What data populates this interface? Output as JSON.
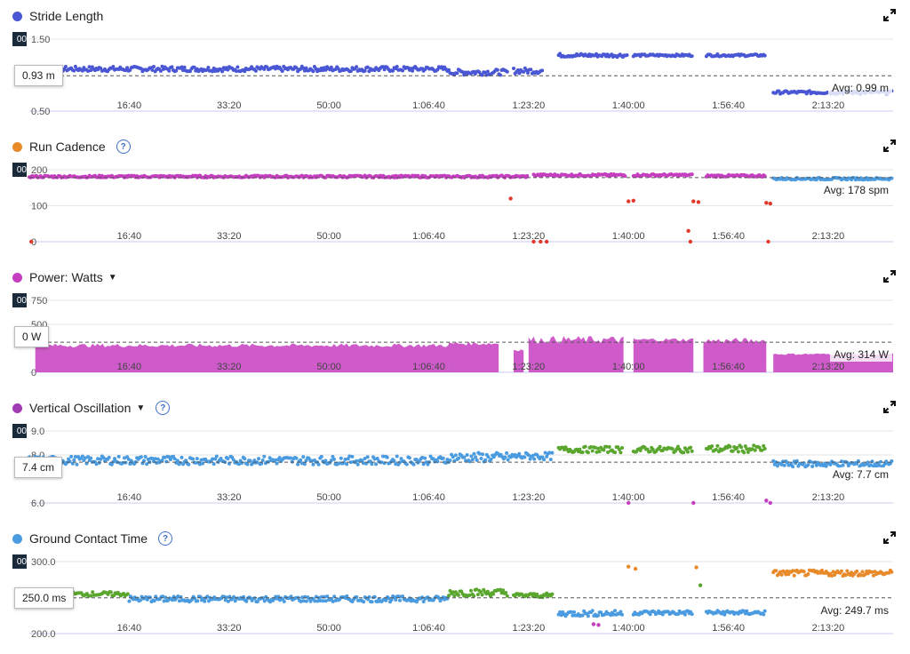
{
  "colors": {
    "blue": "#4a57d4",
    "orange": "#e88a2a",
    "magenta": "#c53ec0",
    "violet": "#a23cb2",
    "skyblue": "#4a9be0",
    "green": "#5aa62e",
    "red": "#e2392b",
    "axis": "#c9ccef"
  },
  "x_ticks": [
    "16:40",
    "33:20",
    "50:00",
    "1:06:40",
    "1:23:20",
    "1:40:00",
    "1:56:40",
    "2:13:20"
  ],
  "x_tick_seconds": [
    1000,
    2000,
    3000,
    4000,
    5000,
    6000,
    7000,
    8000
  ],
  "x_max_seconds": 8650,
  "help_glyph": "?",
  "caret_glyph": "▼",
  "tag_text": "00",
  "charts": [
    {
      "title": "Stride Length",
      "dot_color": "#4a57d4",
      "has_help": false,
      "has_caret": false,
      "tag": "00",
      "tooltip": "0.93 m",
      "avg_label": "Avg: 0.99 m",
      "y_ticks": [
        "1.50",
        "0.50"
      ],
      "chart_data": {
        "type": "scatter",
        "ylim": [
          0.5,
          1.5
        ],
        "avg": 0.99,
        "ytick_values": [
          1.5,
          0.5
        ],
        "segments": [
          [
            0,
            4200,
            1.05,
            1.12,
            "#4a57d4"
          ],
          [
            4200,
            4800,
            1.0,
            1.08,
            "#4a57d4"
          ],
          [
            4850,
            5150,
            1.02,
            1.1,
            "#4a57d4"
          ],
          [
            5300,
            6000,
            1.25,
            1.3,
            "#4a57d4"
          ],
          [
            6050,
            6650,
            1.26,
            1.29,
            "#4a57d4"
          ],
          [
            6780,
            7380,
            1.26,
            1.29,
            "#4a57d4"
          ],
          [
            7450,
            8650,
            0.74,
            0.78,
            "#4a57d4"
          ]
        ]
      }
    },
    {
      "title": "Run Cadence",
      "dot_color": "#e88a2a",
      "has_help": true,
      "has_caret": false,
      "tag": "00",
      "tooltip": "",
      "avg_label": "Avg: 178 spm",
      "y_ticks": [
        "200",
        "100",
        "0"
      ],
      "chart_data": {
        "type": "scatter",
        "ylim": [
          0,
          200
        ],
        "avg": 178,
        "ytick_values": [
          200,
          100,
          0
        ],
        "segments": [
          [
            0,
            5000,
            178,
            184,
            "#c53ec0"
          ],
          [
            5050,
            5980,
            182,
            188,
            "#c53ec0"
          ],
          [
            6050,
            6650,
            182,
            188,
            "#c53ec0"
          ],
          [
            6780,
            7380,
            180,
            186,
            "#c53ec0"
          ],
          [
            7450,
            8650,
            172,
            178,
            "#4a9be0"
          ]
        ],
        "extras": [
          [
            4820,
            120,
            "#e2392b"
          ],
          [
            5050,
            0,
            "#e2392b"
          ],
          [
            5120,
            0,
            "#e2392b"
          ],
          [
            5180,
            0,
            "#e2392b"
          ],
          [
            6000,
            112,
            "#e2392b"
          ],
          [
            6050,
            114,
            "#e2392b"
          ],
          [
            6650,
            112,
            "#e2392b"
          ],
          [
            6700,
            110,
            "#e2392b"
          ],
          [
            6600,
            30,
            "#e2392b"
          ],
          [
            6620,
            0,
            "#e2392b"
          ],
          [
            7380,
            108,
            "#e2392b"
          ],
          [
            7420,
            106,
            "#e2392b"
          ],
          [
            7400,
            0,
            "#e2392b"
          ],
          [
            20,
            0,
            "#e2392b"
          ]
        ]
      }
    },
    {
      "title": "Power: Watts",
      "dot_color": "#c53ec0",
      "has_help": false,
      "has_caret": true,
      "tag": "00",
      "tooltip": "0 W",
      "avg_label": "Avg: 314 W",
      "y_ticks": [
        "750",
        "500",
        "0"
      ],
      "chart_data": {
        "type": "area",
        "ylim": [
          0,
          750
        ],
        "avg": 314,
        "ytick_values": [
          750,
          500,
          0
        ],
        "segments": [
          [
            60,
            4200,
            260,
            300
          ],
          [
            4200,
            4700,
            280,
            320
          ],
          [
            4850,
            4950,
            220,
            250
          ],
          [
            5000,
            5950,
            300,
            380
          ],
          [
            6050,
            6650,
            320,
            360
          ],
          [
            6750,
            7380,
            300,
            360
          ],
          [
            7450,
            8650,
            180,
            200
          ]
        ]
      }
    },
    {
      "title": "Vertical Oscillation",
      "dot_color": "#a23cb2",
      "has_help": true,
      "has_caret": true,
      "tag": "00",
      "tooltip": "7.4 cm",
      "avg_label": "Avg: 7.7 cm",
      "y_ticks": [
        "9.0",
        "8.0",
        "6.0"
      ],
      "chart_data": {
        "type": "scatter",
        "ylim": [
          6.0,
          9.0
        ],
        "avg": 7.7,
        "ytick_values": [
          9.0,
          8.0,
          6.0
        ],
        "segments": [
          [
            0,
            4200,
            7.6,
            7.95,
            "#4a9be0"
          ],
          [
            4200,
            4850,
            7.7,
            8.1,
            "#4a9be0"
          ],
          [
            4850,
            5250,
            7.8,
            8.1,
            "#4a9be0"
          ],
          [
            5300,
            5950,
            8.1,
            8.35,
            "#5aa62e"
          ],
          [
            6050,
            6650,
            8.1,
            8.35,
            "#5aa62e"
          ],
          [
            6780,
            7380,
            8.1,
            8.4,
            "#5aa62e"
          ],
          [
            7450,
            8650,
            7.5,
            7.75,
            "#4a9be0"
          ]
        ],
        "extras": [
          [
            6000,
            6.0,
            "#c53ec0"
          ],
          [
            6650,
            6.0,
            "#c53ec0"
          ],
          [
            7380,
            6.1,
            "#c53ec0"
          ],
          [
            7420,
            6.0,
            "#c53ec0"
          ]
        ]
      }
    },
    {
      "title": "Ground Contact Time",
      "dot_color": "#4a9be0",
      "has_help": true,
      "has_caret": false,
      "tag": "00",
      "tooltip": "250.0 ms",
      "avg_label": "Avg: 249.7 ms",
      "y_ticks": [
        "300.0",
        "200.0"
      ],
      "chart_data": {
        "type": "scatter",
        "ylim": [
          200,
          300
        ],
        "avg": 249.7,
        "ytick_values": [
          300,
          200
        ],
        "segments": [
          [
            0,
            1000,
            252,
            258,
            "#5aa62e"
          ],
          [
            1000,
            4200,
            244,
            252,
            "#4a9be0"
          ],
          [
            4200,
            4800,
            252,
            262,
            "#5aa62e"
          ],
          [
            4850,
            5250,
            250,
            256,
            "#5aa62e"
          ],
          [
            5300,
            5950,
            224,
            232,
            "#4a9be0"
          ],
          [
            6050,
            6650,
            226,
            232,
            "#4a9be0"
          ],
          [
            6780,
            7380,
            226,
            232,
            "#4a9be0"
          ],
          [
            7450,
            8650,
            280,
            288,
            "#e88a2a"
          ]
        ],
        "extras": [
          [
            5650,
            213,
            "#c53ec0"
          ],
          [
            5700,
            212,
            "#c53ec0"
          ],
          [
            6000,
            293,
            "#e88a2a"
          ],
          [
            6070,
            290,
            "#e88a2a"
          ],
          [
            6680,
            292,
            "#e88a2a"
          ],
          [
            6720,
            267,
            "#5aa62e"
          ]
        ]
      }
    }
  ]
}
